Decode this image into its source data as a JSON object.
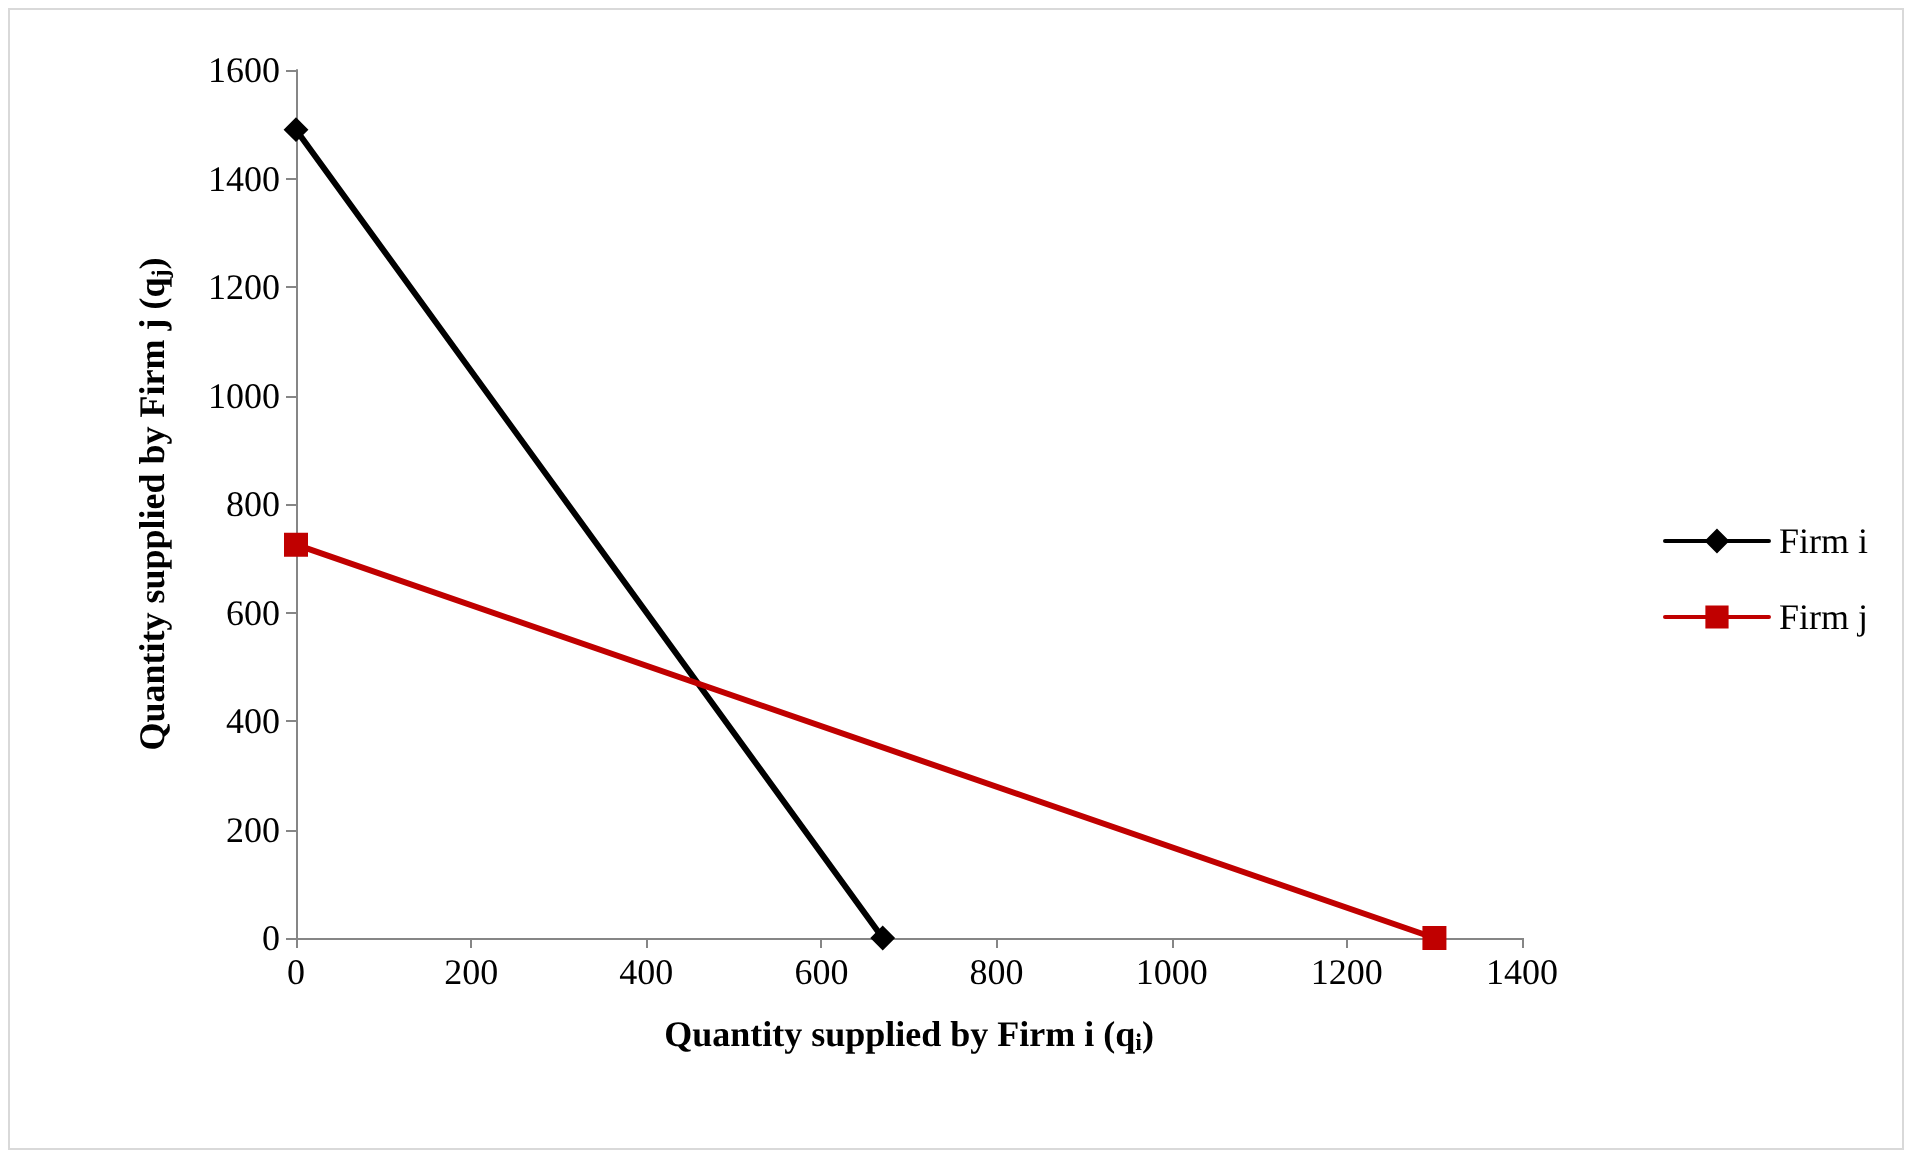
{
  "chart_data": {
    "type": "line",
    "xlabel": "Quantity supplied by Firm i (q$_{i}$)",
    "ylabel": "Quantity supplied by Firm j (q$_{j}$)",
    "xlim": [
      0,
      1400
    ],
    "xticks": [
      0,
      200,
      400,
      600,
      800,
      1000,
      1200,
      1400
    ],
    "ylim": [
      0,
      1600
    ],
    "yticks": [
      0,
      200,
      400,
      600,
      800,
      1000,
      1200,
      1400,
      1600
    ],
    "grid": false,
    "legend": "right",
    "line_style": "solid",
    "series": [
      {
        "name": "Firm i",
        "color": "#000000",
        "marker": "diamond",
        "x": [
          0,
          670
        ],
        "values": [
          1490,
          0
        ]
      },
      {
        "name": "Firm j",
        "color": "#c00000",
        "marker": "square",
        "x": [
          0,
          1300
        ],
        "values": [
          725,
          0
        ]
      }
    ]
  }
}
